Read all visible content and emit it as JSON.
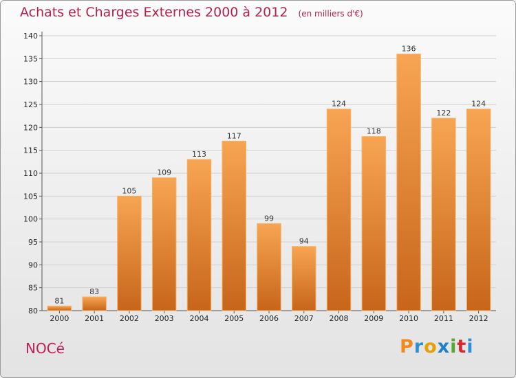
{
  "header": {
    "title": "Achats et Charges Externes 2000 à 2012",
    "unit": "(en milliers d'€)"
  },
  "footer": {
    "commune": "NOCé",
    "logo_text": "Proxiti"
  },
  "colors": {
    "title": "#b5214a",
    "bar_top": "#f7a552",
    "bar_bottom": "#c7651a",
    "bar_edge": "#f6b26a"
  },
  "chart_data": {
    "type": "bar",
    "title": "Achats et Charges Externes 2000 à 2012",
    "categories": [
      "2000",
      "2001",
      "2002",
      "2003",
      "2004",
      "2005",
      "2006",
      "2007",
      "2008",
      "2009",
      "2010",
      "2011",
      "2012"
    ],
    "values": [
      81,
      83,
      105,
      109,
      113,
      117,
      99,
      94,
      124,
      118,
      136,
      122,
      124
    ],
    "data_labels": [
      "81",
      "83",
      "105",
      "109",
      "113",
      "117",
      "99",
      "94",
      "124",
      "118",
      "136",
      "122",
      "124"
    ],
    "ylim": [
      80,
      140
    ],
    "yticks": [
      80,
      85,
      90,
      95,
      100,
      105,
      110,
      115,
      120,
      125,
      130,
      135,
      140
    ],
    "ytick_labels": [
      "80",
      "85",
      "90",
      "95",
      "100",
      "105",
      "110",
      "115",
      "120",
      "125",
      "130",
      "135",
      "140"
    ],
    "grid": true,
    "legend": "none"
  }
}
